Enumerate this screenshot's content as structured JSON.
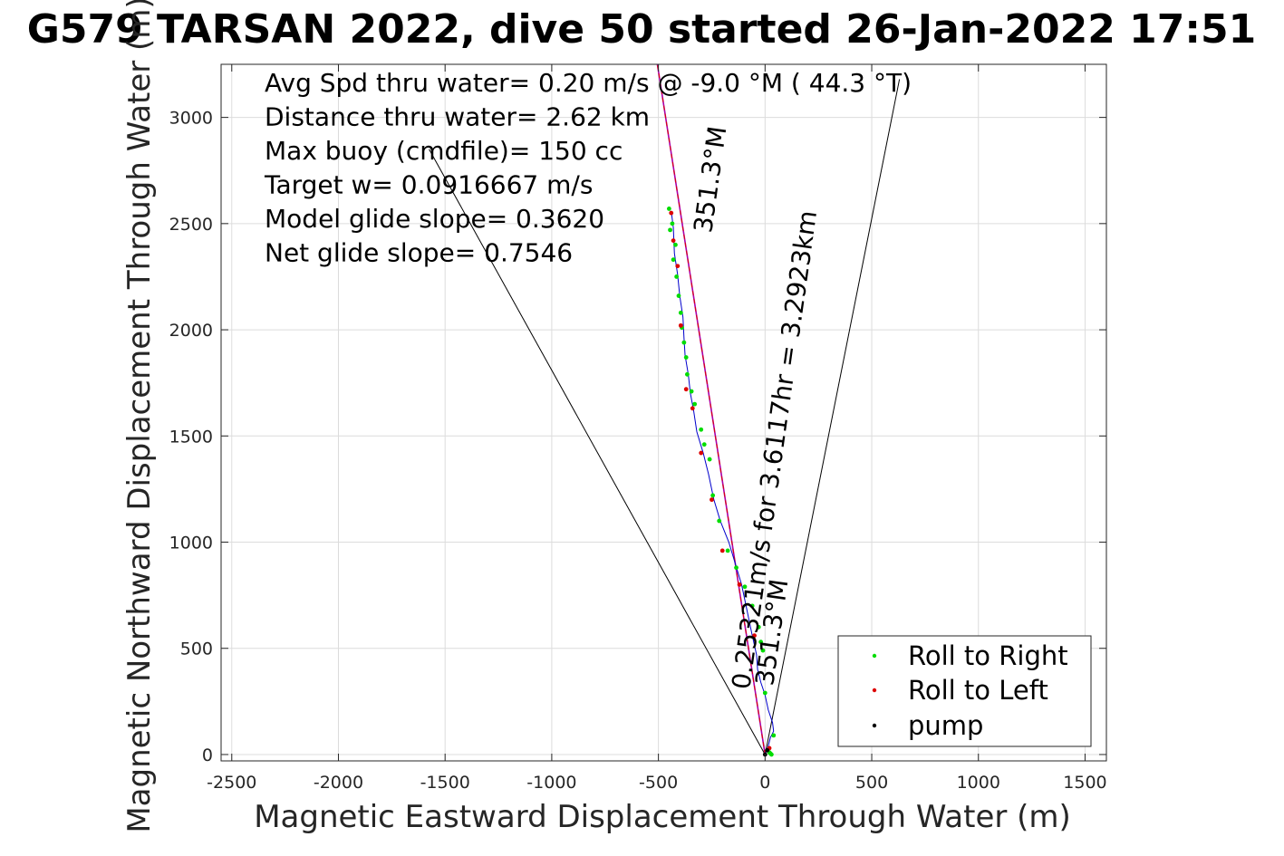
{
  "chart_data": {
    "type": "line",
    "title": "G579 TARSAN 2022, dive 50 started 26-Jan-2022 17:51",
    "xlabel": "Magnetic Eastward Displacement Through Water (m)",
    "ylabel": "Magnetic Northward Displacement Through Water (m)",
    "xlim": [
      -2550,
      1600
    ],
    "ylim": [
      -30,
      3250
    ],
    "xticks": [
      -2500,
      -2000,
      -1500,
      -1000,
      -500,
      0,
      500,
      1000,
      1500
    ],
    "yticks": [
      0,
      500,
      1000,
      1500,
      2000,
      2500,
      3000
    ],
    "xtick_labels": [
      "-2500",
      "-2000",
      "-1500",
      "-1000",
      "-500",
      "0",
      "500",
      "1000",
      "1500"
    ],
    "ytick_labels": [
      "0",
      "500",
      "1000",
      "1500",
      "2000",
      "2500",
      "3000"
    ],
    "grid": true,
    "annotations": [
      "Avg Spd thru water=  0.20 m/s @  -9.0 °M ( 44.3 °T)",
      "Distance thru water=  2.62 km",
      "Max buoy (cmdfile)= 150 cc",
      "Target w= 0.0916667 m/s",
      "Model glide slope= 0.3620",
      "Net glide slope= 0.7546"
    ],
    "vector_labels": {
      "upper": "351.3°M",
      "long": "0.25321m/s for 3.6117hr = 3.2923km",
      "lower": "351.3°M"
    },
    "reference_lines": [
      {
        "from": [
          0,
          0
        ],
        "to": [
          -1575,
          2850
        ]
      },
      {
        "from": [
          0,
          0
        ],
        "to": [
          630,
          3180
        ]
      }
    ],
    "heading_line": {
      "from": [
        0,
        0
      ],
      "to": [
        -505,
        3250
      ]
    },
    "track": {
      "x": [
        0,
        15,
        25,
        40,
        35,
        15,
        0,
        -20,
        -35,
        -40,
        -60,
        -85,
        -110,
        -140,
        -170,
        -210,
        -240,
        -265,
        -290,
        -320,
        -335,
        -350,
        -360,
        -375,
        -380,
        -385,
        -400,
        -410,
        -425,
        -430,
        -440
      ],
      "y": [
        0,
        40,
        80,
        110,
        150,
        210,
        280,
        340,
        400,
        470,
        560,
        680,
        800,
        900,
        1000,
        1100,
        1200,
        1320,
        1420,
        1520,
        1620,
        1700,
        1790,
        1880,
        1960,
        2060,
        2160,
        2260,
        2360,
        2480,
        2560
      ]
    },
    "legend": {
      "position": "bottom-right",
      "entries": [
        {
          "name": "Roll to Right",
          "color": "#00dd00"
        },
        {
          "name": "Roll to Left",
          "color": "#dd0000"
        },
        {
          "name": "pump",
          "color": "#000000"
        }
      ]
    },
    "series_points": {
      "roll_right": {
        "x": [
          30,
          20,
          40,
          0,
          -10,
          -20,
          -30,
          -60,
          -95,
          -135,
          -175,
          -215,
          -245,
          -260,
          -285,
          -300,
          -330,
          -345,
          -365,
          -370,
          -380,
          -390,
          -395,
          -405,
          -415,
          -430,
          -420,
          -445,
          -450,
          -435,
          25
        ],
        "y": [
          0,
          10,
          90,
          290,
          490,
          530,
          600,
          700,
          790,
          880,
          960,
          1100,
          1220,
          1390,
          1460,
          1530,
          1650,
          1710,
          1790,
          1870,
          1940,
          2010,
          2080,
          2160,
          2250,
          2330,
          2400,
          2470,
          2570,
          2500,
          5
        ]
      },
      "roll_left": {
        "x": [
          20,
          -50,
          -120,
          -200,
          -250,
          -300,
          -340,
          -370,
          -395,
          -410,
          -440,
          -430
        ],
        "y": [
          30,
          560,
          800,
          960,
          1200,
          1420,
          1630,
          1720,
          2020,
          2300,
          2550,
          2420
        ]
      },
      "pump": {
        "x": [
          10,
          0
        ],
        "y": [
          20,
          0
        ]
      }
    }
  }
}
